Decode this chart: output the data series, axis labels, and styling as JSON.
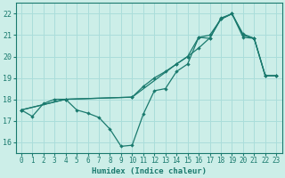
{
  "xlabel": "Humidex (Indice chaleur)",
  "background_color": "#cceee8",
  "grid_color": "#aaddda",
  "line_color": "#1a7a6e",
  "xlim": [
    -0.5,
    23.5
  ],
  "ylim": [
    15.5,
    22.5
  ],
  "yticks": [
    16,
    17,
    18,
    19,
    20,
    21,
    22
  ],
  "xticks": [
    0,
    1,
    2,
    3,
    4,
    5,
    6,
    7,
    8,
    9,
    10,
    11,
    12,
    13,
    14,
    15,
    16,
    17,
    18,
    19,
    20,
    21,
    22,
    23
  ],
  "line1_x": [
    0,
    1,
    2,
    3,
    4,
    5,
    6,
    7,
    8,
    9,
    10,
    11,
    12,
    13,
    14,
    15,
    16,
    17,
    18,
    19,
    20,
    21,
    22,
    23
  ],
  "line1_y": [
    17.5,
    17.2,
    17.8,
    18.0,
    18.0,
    17.5,
    17.35,
    17.15,
    16.6,
    15.8,
    15.85,
    17.3,
    18.4,
    18.5,
    19.3,
    19.65,
    20.9,
    20.85,
    21.8,
    22.0,
    20.9,
    20.85,
    19.1,
    19.1
  ],
  "line2_x": [
    0,
    4,
    10,
    11,
    12,
    13,
    14,
    15,
    16,
    17,
    18,
    19,
    20,
    21,
    22,
    23
  ],
  "line2_y": [
    17.5,
    18.0,
    18.1,
    18.6,
    19.0,
    19.3,
    19.65,
    20.0,
    20.4,
    20.87,
    21.75,
    22.0,
    21.0,
    20.85,
    19.1,
    19.1
  ],
  "line3_x": [
    0,
    4,
    10,
    14,
    15,
    16,
    17,
    18,
    19,
    20,
    21,
    22,
    23
  ],
  "line3_y": [
    17.5,
    18.0,
    18.1,
    19.65,
    20.0,
    20.9,
    21.0,
    21.75,
    22.0,
    21.05,
    20.85,
    19.1,
    19.1
  ]
}
